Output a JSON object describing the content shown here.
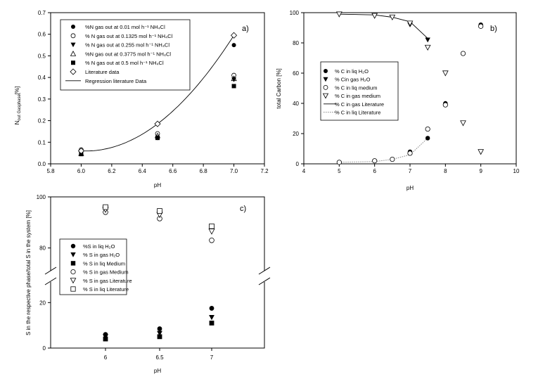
{
  "chart_data": [
    {
      "id": "a",
      "type": "scatter",
      "panel_label": "a)",
      "xlabel": "pH",
      "ylabel_main": "N",
      "ylabel_sub": "out Gasphase",
      "ylabel_unit": "[%]",
      "xlim": [
        5.8,
        7.2
      ],
      "ylim": [
        0.0,
        0.7
      ],
      "xticks": [
        5.8,
        6.0,
        6.2,
        6.4,
        6.6,
        6.8,
        7.0,
        7.2
      ],
      "xtick_labels": [
        "5.8",
        "6.0",
        "6.2",
        "6.4",
        "6.6",
        "6.8",
        "7.0",
        "7.2"
      ],
      "yticks": [
        0.0,
        0.1,
        0.2,
        0.3,
        0.4,
        0.5,
        0.6,
        0.7
      ],
      "ytick_labels": [
        "0.0",
        "0.1",
        "0.2",
        "0.3",
        "0.4",
        "0.5",
        "0.6",
        "0.7"
      ],
      "legend_position": "top-left",
      "series": [
        {
          "name": "%N gas out at 0.01 mol h⁻¹ NH₄Cl",
          "marker": "filled-circle",
          "x": [
            6.0,
            6.5,
            7.0
          ],
          "y": [
            0.055,
            0.125,
            0.55
          ]
        },
        {
          "name": "% N gas out at 0.1325 mol h⁻¹ NH₄Cl",
          "marker": "open-circle",
          "x": [
            6.0,
            6.5,
            7.0
          ],
          "y": [
            0.065,
            0.14,
            0.41
          ]
        },
        {
          "name": "% N gas out at 0.255 mol h⁻¹ NH₄Cl",
          "marker": "filled-triangle-down",
          "x": [
            6.0,
            6.5,
            7.0
          ],
          "y": [
            0.05,
            0.12,
            0.39
          ]
        },
        {
          "name": "%N gas out at 0.3775 mol h⁻¹ NH₄Cl",
          "marker": "open-triangle-up",
          "x": [
            6.0,
            6.5,
            7.0
          ],
          "y": [
            0.048,
            0.13,
            0.395
          ]
        },
        {
          "name": "% N gas out at 0.5 mol h⁻¹ NH₄Cl",
          "marker": "filled-square",
          "x": [
            6.0,
            6.5,
            7.0
          ],
          "y": [
            0.045,
            0.12,
            0.36
          ]
        },
        {
          "name": "Literature data",
          "marker": "open-diamond",
          "x": [
            6.0,
            6.5,
            7.0
          ],
          "y": [
            0.06,
            0.185,
            0.595
          ]
        },
        {
          "name": "Regression literature Data",
          "marker": "line",
          "x": [
            6.0,
            6.5,
            7.0
          ],
          "y": [
            0.06,
            0.185,
            0.595
          ]
        }
      ]
    },
    {
      "id": "b",
      "type": "scatter",
      "panel_label": "b)",
      "xlabel": "pH",
      "ylabel": "total Carbon [%]",
      "xlim": [
        4,
        10
      ],
      "ylim": [
        0,
        100
      ],
      "xticks": [
        4,
        5,
        6,
        7,
        8,
        9,
        10
      ],
      "xtick_labels": [
        "4",
        "5",
        "6",
        "7",
        "8",
        "9",
        "10"
      ],
      "yticks": [
        0,
        20,
        40,
        60,
        80,
        100
      ],
      "ytick_labels": [
        "0",
        "20",
        "40",
        "60",
        "80",
        "100"
      ],
      "legend_position": "center-left",
      "series": [
        {
          "name": "% C in liq H₂O",
          "marker": "filled-circle",
          "x": [
            7.0,
            7.5,
            8.0,
            9.0
          ],
          "y": [
            8,
            17,
            40,
            92
          ]
        },
        {
          "name": "% Cin gas H₂O",
          "marker": "filled-triangle-down",
          "x": [
            7.0,
            7.5
          ],
          "y": [
            92,
            82
          ]
        },
        {
          "name": "% C in liq medium",
          "marker": "open-circle",
          "x": [
            5.0,
            6.0,
            6.5,
            7.0,
            7.5,
            8.0,
            8.5,
            9.0
          ],
          "y": [
            1,
            2,
            3,
            7,
            23,
            39,
            73,
            91
          ]
        },
        {
          "name": "% C in gas medium",
          "marker": "open-triangle-down",
          "x": [
            5.0,
            6.0,
            6.5,
            7.0,
            7.5,
            8.0,
            8.5,
            9.0
          ],
          "y": [
            99,
            98,
            97,
            93,
            77,
            60,
            27,
            8
          ]
        },
        {
          "name": "% C in gas Literature",
          "marker": "line-solid",
          "x": [
            5.0,
            6.0,
            6.5,
            7.0,
            7.5
          ],
          "y": [
            99,
            98.5,
            97,
            94,
            83
          ]
        },
        {
          "name": "% C in liq Literature",
          "marker": "line-dotted",
          "x": [
            5.0,
            6.0,
            6.5,
            7.0,
            7.5
          ],
          "y": [
            1,
            1.5,
            3,
            6,
            17
          ]
        }
      ]
    },
    {
      "id": "c",
      "type": "scatter",
      "panel_label": "c)",
      "xlabel": "pH",
      "ylabel": "S in the respective phase/total S in the system [%]",
      "x_categories": [
        "6",
        "6.5",
        "7"
      ],
      "axis_break": true,
      "lower_ylim": [
        0,
        30
      ],
      "upper_ylim": [
        70,
        100
      ],
      "yticks": [
        0,
        20,
        80,
        100
      ],
      "ytick_labels": [
        "0",
        "20",
        "80",
        "100"
      ],
      "legend_position": "center-left",
      "series": [
        {
          "name": "%S in liq H₂O",
          "marker": "filled-circle",
          "x": [
            "6",
            "6.5",
            "7"
          ],
          "y": [
            6,
            8.5,
            17.5
          ]
        },
        {
          "name": "% S in gas H₂O",
          "marker": "filled-triangle-down",
          "x": [
            "6",
            "6.5",
            "7"
          ],
          "y": [
            5,
            6.5,
            13.5
          ]
        },
        {
          "name": "% S in liq Medium",
          "marker": "filled-square",
          "x": [
            "6",
            "6.5",
            "7"
          ],
          "y": [
            4,
            5,
            11
          ]
        },
        {
          "name": "% S in gas Medium",
          "marker": "open-circle",
          "x": [
            "6",
            "6.5",
            "7"
          ],
          "y": [
            94,
            91.5,
            83
          ]
        },
        {
          "name": "% S in gas Literature",
          "marker": "open-triangle-down",
          "x": [
            "6",
            "6.5",
            "7"
          ],
          "y": [
            95,
            93,
            86.5
          ]
        },
        {
          "name": "% S in liq Literature",
          "marker": "open-square",
          "x": [
            "6",
            "6.5",
            "7"
          ],
          "y": [
            96,
            94.5,
            88.5
          ]
        }
      ]
    }
  ]
}
